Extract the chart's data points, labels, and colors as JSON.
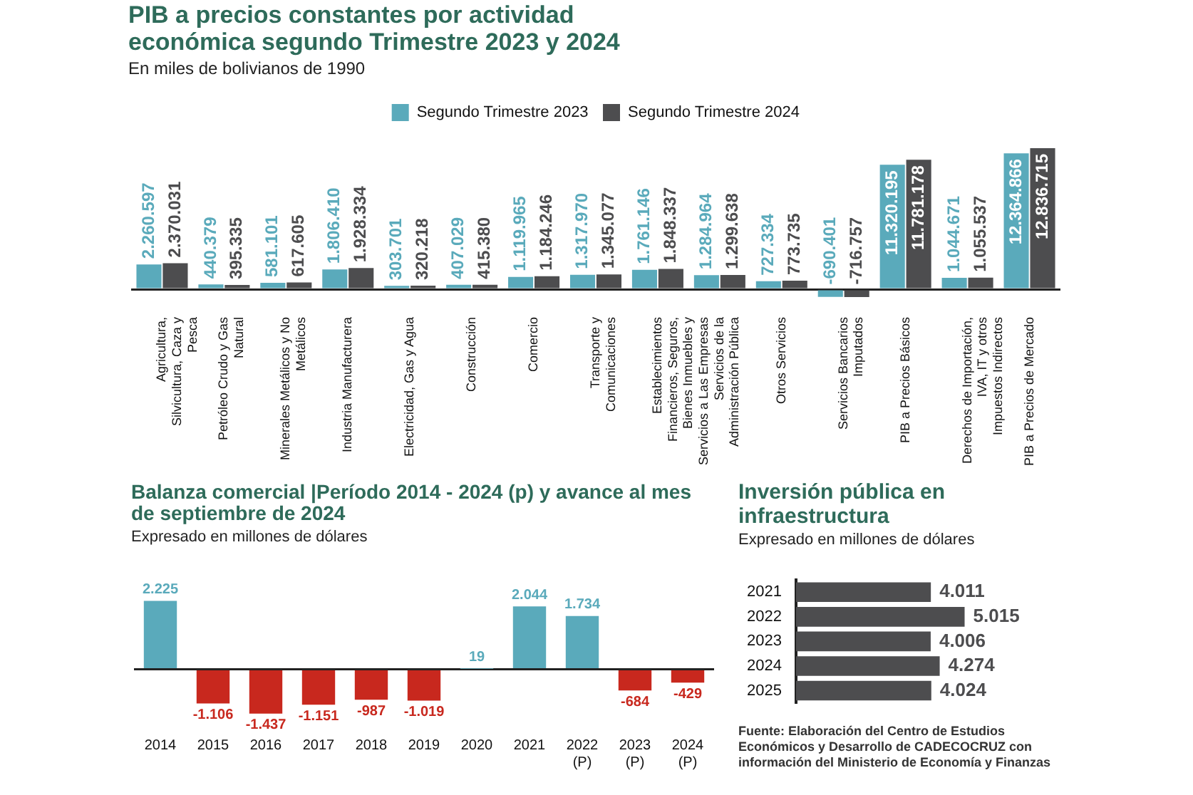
{
  "chart_data": [
    {
      "type": "bar",
      "title": "PIB a precios constantes por actividad económica segundo Trimestre 2023 y 2024",
      "subtitle": "En miles de bolivianos de 1990",
      "legend": "top",
      "grid": false,
      "categories": [
        "Agricultura, Silvicultura, Caza y Pesca",
        "Petróleo Crudo y Gas Natural",
        "Minerales Metálicos y No Metálicos",
        "Industria Manufacturera",
        "Electricidad, Gas y Agua",
        "Construcción",
        "Comercio",
        "Transporte y Comunicaciones",
        "Establecimientos Financieros, Seguros, Bienes Inmuebles y Servicios a Las Empresas",
        "Servicios de la Administración Pública",
        "Otros Servicios",
        "Servicios Bancarios Imputados",
        "PIB a Precios Básicos",
        "Derechos de Importación, IVA, IT y otros Impuestos Indirectos",
        "PIB a Precios de Mercado"
      ],
      "series": [
        {
          "name": "Segundo Trimestre 2023",
          "color": "#5aaabb",
          "values": [
            2260597,
            440379,
            581101,
            1806410,
            303701,
            407029,
            1119965,
            1317970,
            1761146,
            1284964,
            727334,
            -690401,
            11320195,
            1044671,
            12364866
          ],
          "value_labels": [
            "2.260.597",
            "440.379",
            "581.101",
            "1.806.410",
            "303.701",
            "407.029",
            "1.119.965",
            "1.317.970",
            "1.761.146",
            "1.284.964",
            "727.334",
            "-690.401",
            "11.320.195",
            "1.044.671",
            "12.364.866"
          ]
        },
        {
          "name": "Segundo Trimestre 2024",
          "color": "#4d4d4f",
          "values": [
            2370031,
            395335,
            617605,
            1928334,
            320218,
            415380,
            1184246,
            1345077,
            1848337,
            1299638,
            773735,
            -716757,
            11781178,
            1055537,
            12836715
          ],
          "value_labels": [
            "2.370.031",
            "395.335",
            "617.605",
            "1.928.334",
            "320.218",
            "415.380",
            "1.184.246",
            "1.345.077",
            "1.848.337",
            "1.299.638",
            "773.735",
            "-716.757",
            "11.781.178",
            "1.055.537",
            "12.836.715"
          ]
        }
      ]
    },
    {
      "type": "bar",
      "title": "Balanza comercial  |Período 2014 - 2024 (p) y avance al mes de septiembre de 2024",
      "subtitle": "Expresado en millones de dólares",
      "grid": false,
      "categories": [
        "2014",
        "2015",
        "2016",
        "2017",
        "2018",
        "2019",
        "2020",
        "2021",
        "2022 (P)",
        "2023 (P)",
        "2024 (P)"
      ],
      "values": [
        2225,
        -1106,
        -1437,
        -1151,
        -987,
        -1019,
        19,
        2044,
        1734,
        -684,
        -429
      ],
      "colors": [
        "#5aaabb",
        "#c8281e",
        "#c8281e",
        "#c8281e",
        "#c8281e",
        "#c8281e",
        "#5aaabb",
        "#5aaabb",
        "#5aaabb",
        "#c8281e",
        "#c8281e"
      ],
      "value_labels": [
        "2.225",
        "-1.106",
        "-1.437",
        "-1.151",
        "-987",
        "-1.019",
        "19",
        "2.044",
        "1.734",
        "-684",
        "-429"
      ]
    },
    {
      "type": "bar",
      "orientation": "horizontal",
      "title": "Inversión pública en infraestructura",
      "subtitle": "Expresado en millones de dólares",
      "grid": false,
      "categories": [
        "2021",
        "2022",
        "2023",
        "2024",
        "2025"
      ],
      "values": [
        4011,
        5015,
        4006,
        4274,
        4024
      ],
      "color": "#4d4d4f",
      "value_labels": [
        "4.011",
        "5.015",
        "4.006",
        "4.274",
        "4.024"
      ],
      "annotations": [
        "Fuente: Elaboración del Centro de Estudios Económicos y Desarrollo de CADECOCRUZ con información del Ministerio de Economía y Finanzas"
      ]
    }
  ]
}
